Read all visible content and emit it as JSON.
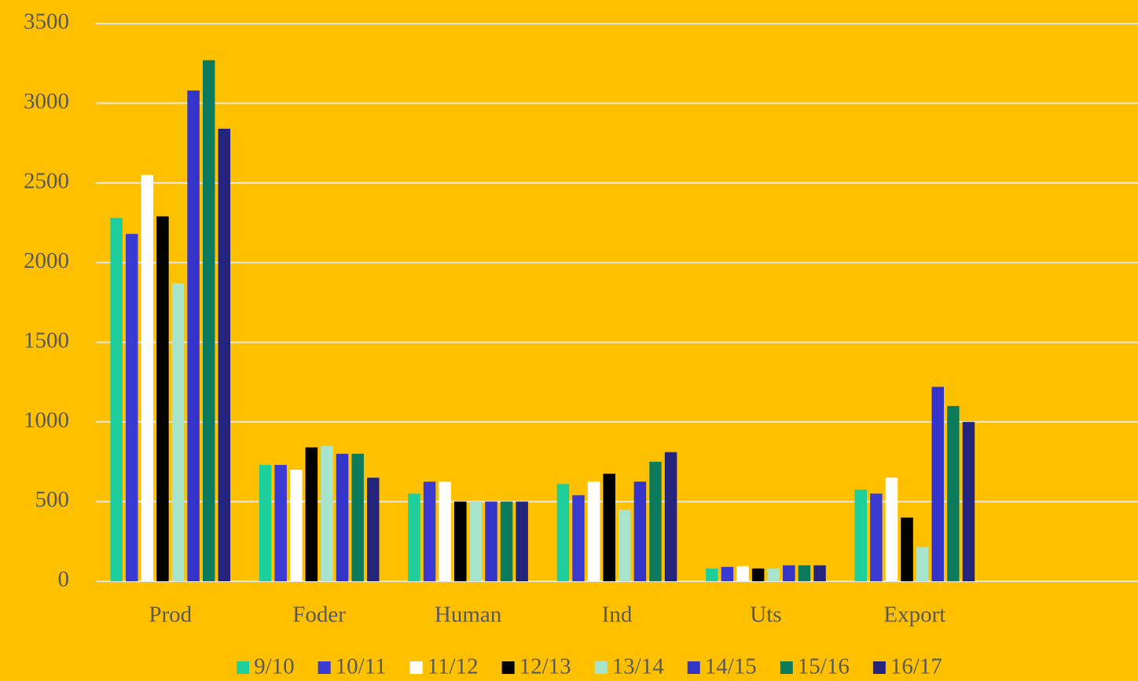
{
  "chart_data": {
    "type": "bar",
    "categories": [
      "Prod",
      "Foder",
      "Human",
      "Ind",
      "Uts",
      "Export",
      null
    ],
    "series": [
      {
        "name": "9/10",
        "color": "#1fcf9b",
        "values": [
          2280,
          730,
          550,
          610,
          80,
          575,
          null
        ]
      },
      {
        "name": "10/11",
        "color": "#3b3bd1",
        "values": [
          2180,
          730,
          625,
          540,
          90,
          550,
          null
        ]
      },
      {
        "name": "11/12",
        "color": "#ffffff",
        "values": [
          2550,
          700,
          625,
          625,
          95,
          650,
          null
        ]
      },
      {
        "name": "12/13",
        "color": "#000000",
        "values": [
          2290,
          840,
          500,
          675,
          80,
          400,
          null
        ]
      },
      {
        "name": "13/14",
        "color": "#a8e4cc",
        "values": [
          1870,
          850,
          500,
          450,
          80,
          215,
          null
        ]
      },
      {
        "name": "14/15",
        "color": "#3434c8",
        "values": [
          3080,
          800,
          500,
          625,
          100,
          1220,
          null
        ]
      },
      {
        "name": "15/16",
        "color": "#0b7b5b",
        "values": [
          3270,
          800,
          500,
          750,
          100,
          1100,
          null
        ]
      },
      {
        "name": "16/17",
        "color": "#24247c",
        "values": [
          2840,
          650,
          500,
          810,
          100,
          1000,
          null
        ]
      }
    ],
    "ylim": [
      0,
      3500
    ],
    "yticks": [
      0,
      500,
      1000,
      1500,
      2000,
      2500,
      3000,
      3500
    ],
    "grid": true
  }
}
